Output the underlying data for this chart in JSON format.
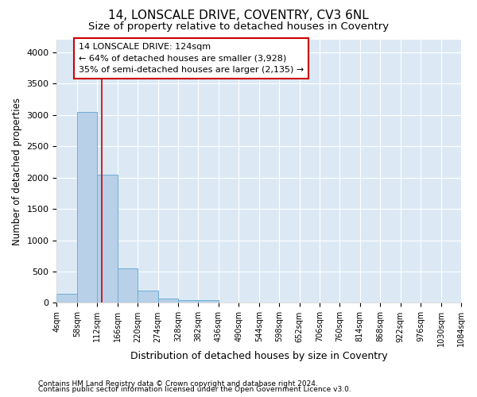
{
  "title1": "14, LONSCALE DRIVE, COVENTRY, CV3 6NL",
  "title2": "Size of property relative to detached houses in Coventry",
  "xlabel": "Distribution of detached houses by size in Coventry",
  "ylabel": "Number of detached properties",
  "bin_edges": [
    4,
    58,
    112,
    166,
    220,
    274,
    328,
    382,
    436,
    490,
    544,
    598,
    652,
    706,
    760,
    814,
    868,
    922,
    976,
    1030,
    1084
  ],
  "bar_heights": [
    150,
    3050,
    2050,
    550,
    200,
    75,
    50,
    50,
    0,
    0,
    0,
    0,
    0,
    0,
    0,
    0,
    0,
    0,
    0,
    0
  ],
  "bar_color": "#b8d0e8",
  "bar_edge_color": "#6baed6",
  "property_size": 124,
  "red_line_color": "#cc0000",
  "annotation_line1": "14 LONSCALE DRIVE: 124sqm",
  "annotation_line2": "← 64% of detached houses are smaller (3,928)",
  "annotation_line3": "35% of semi-detached houses are larger (2,135) →",
  "annotation_box_color": "#cc0000",
  "ylim": [
    0,
    4200
  ],
  "yticks": [
    0,
    500,
    1000,
    1500,
    2000,
    2500,
    3000,
    3500,
    4000
  ],
  "bg_color": "#dce9f5",
  "grid_color": "#ffffff",
  "footer1": "Contains HM Land Registry data © Crown copyright and database right 2024.",
  "footer2": "Contains public sector information licensed under the Open Government Licence v3.0.",
  "title1_fontsize": 11,
  "title2_fontsize": 9.5,
  "annotation_fontsize": 8,
  "xlabel_fontsize": 9,
  "ylabel_fontsize": 8.5,
  "footer_fontsize": 6.5
}
